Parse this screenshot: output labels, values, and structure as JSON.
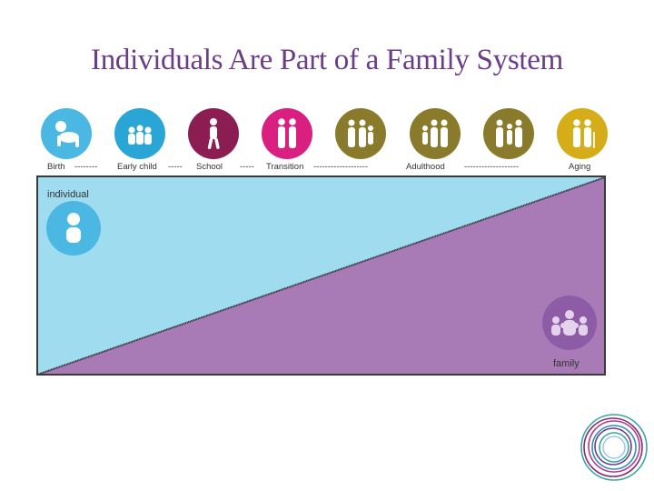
{
  "title": "Individuals Are Part of a Family System",
  "stages": [
    {
      "label": "Birth",
      "color": "#4bb8e3",
      "icon": "baby-crawling-icon"
    },
    {
      "label": "Early child",
      "color": "#2aa6d6",
      "icon": "children-group-icon"
    },
    {
      "label": "School",
      "color": "#8b1d52",
      "icon": "walking-child-icon"
    },
    {
      "label": "Transition",
      "color": "#d91f7f",
      "icon": "young-adults-icon"
    },
    {
      "label": "Adulthood",
      "color": "#8a7a2b",
      "icon": "adult-group-icon"
    },
    {
      "label": "",
      "color": "#8a7a2b",
      "icon": "adult-group-icon"
    },
    {
      "label": "",
      "color": "#8a7a2b",
      "icon": "adult-group-icon"
    },
    {
      "label": "Aging",
      "color": "#d4ad18",
      "icon": "elderly-couple-icon"
    }
  ],
  "dashes": {
    "d1": "--------",
    "d2": "-----",
    "d3": "-----",
    "d4": "-------------------",
    "d5": "-------------------"
  },
  "diagram": {
    "individual_label": "individual",
    "family_label": "family",
    "individual_color": "#9fdcef",
    "family_color": "#a87bb7"
  }
}
